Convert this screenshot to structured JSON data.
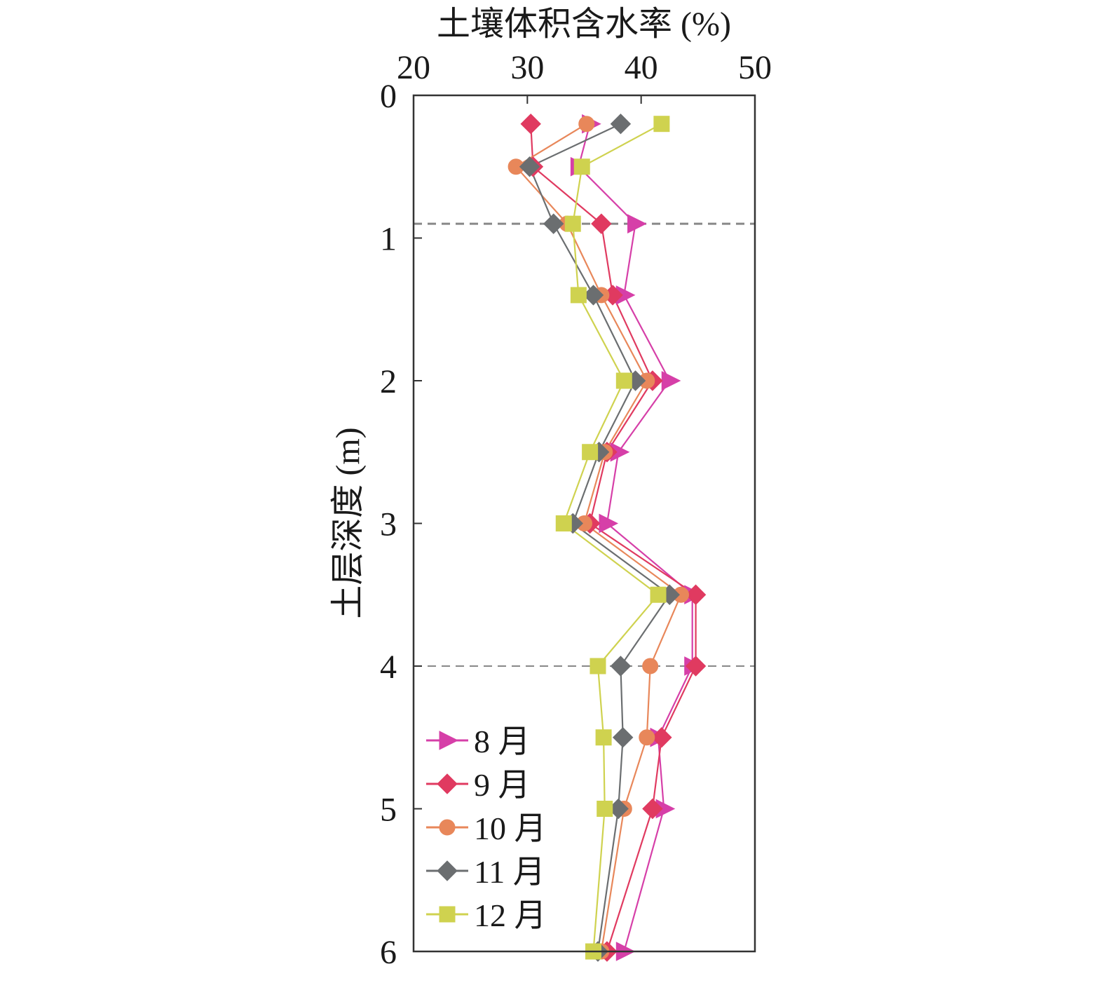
{
  "chart_data": {
    "type": "line",
    "xlabel": "土壤体积含水率 (%)",
    "ylabel": "土层深度 (m)",
    "xlim": [
      20,
      50
    ],
    "ylim": [
      0,
      6
    ],
    "x_axis_position": "top",
    "y_axis_inverted": true,
    "x_ticks": [
      "20",
      "30",
      "40",
      "50"
    ],
    "y_ticks": [
      "0",
      "1",
      "2",
      "3",
      "4",
      "5",
      "6"
    ],
    "grid": false,
    "reference_lines": [
      0.9,
      4.0
    ],
    "legend": {
      "position": "bottom-left"
    },
    "depths": [
      0.2,
      0.5,
      0.9,
      1.4,
      2.0,
      2.5,
      3.0,
      3.5,
      4.0,
      4.5,
      5.0,
      6.0
    ],
    "series": [
      {
        "name": "8 月",
        "color": "#d63fa8",
        "marker": "triangle-right",
        "values": [
          35.5,
          34.5,
          39.5,
          38.5,
          42.5,
          38,
          37,
          44.5,
          44.5,
          41.5,
          42,
          38.5
        ]
      },
      {
        "name": "9 月",
        "color": "#e03a60",
        "marker": "diamond",
        "values": [
          30.3,
          30.5,
          36.5,
          37.5,
          41,
          37,
          35.5,
          44.8,
          44.8,
          41.8,
          41,
          37
        ]
      },
      {
        "name": "10 月",
        "color": "#e8875a",
        "marker": "circle",
        "values": [
          35.2,
          29,
          33.5,
          36.5,
          40.5,
          36.8,
          35,
          43.5,
          40.8,
          40.5,
          38.5,
          36.5
        ]
      },
      {
        "name": "11 月",
        "color": "#6b6e70",
        "marker": "diamond",
        "values": [
          38.2,
          30.2,
          32.3,
          35.8,
          39.5,
          36.3,
          34,
          42.5,
          38.2,
          38.4,
          38,
          36.2
        ]
      },
      {
        "name": "12 月",
        "color": "#cfd24f",
        "marker": "square",
        "values": [
          41.8,
          34.8,
          34,
          34.5,
          38.5,
          35.5,
          33.2,
          41.5,
          36.2,
          36.7,
          36.8,
          35.8
        ]
      }
    ]
  }
}
